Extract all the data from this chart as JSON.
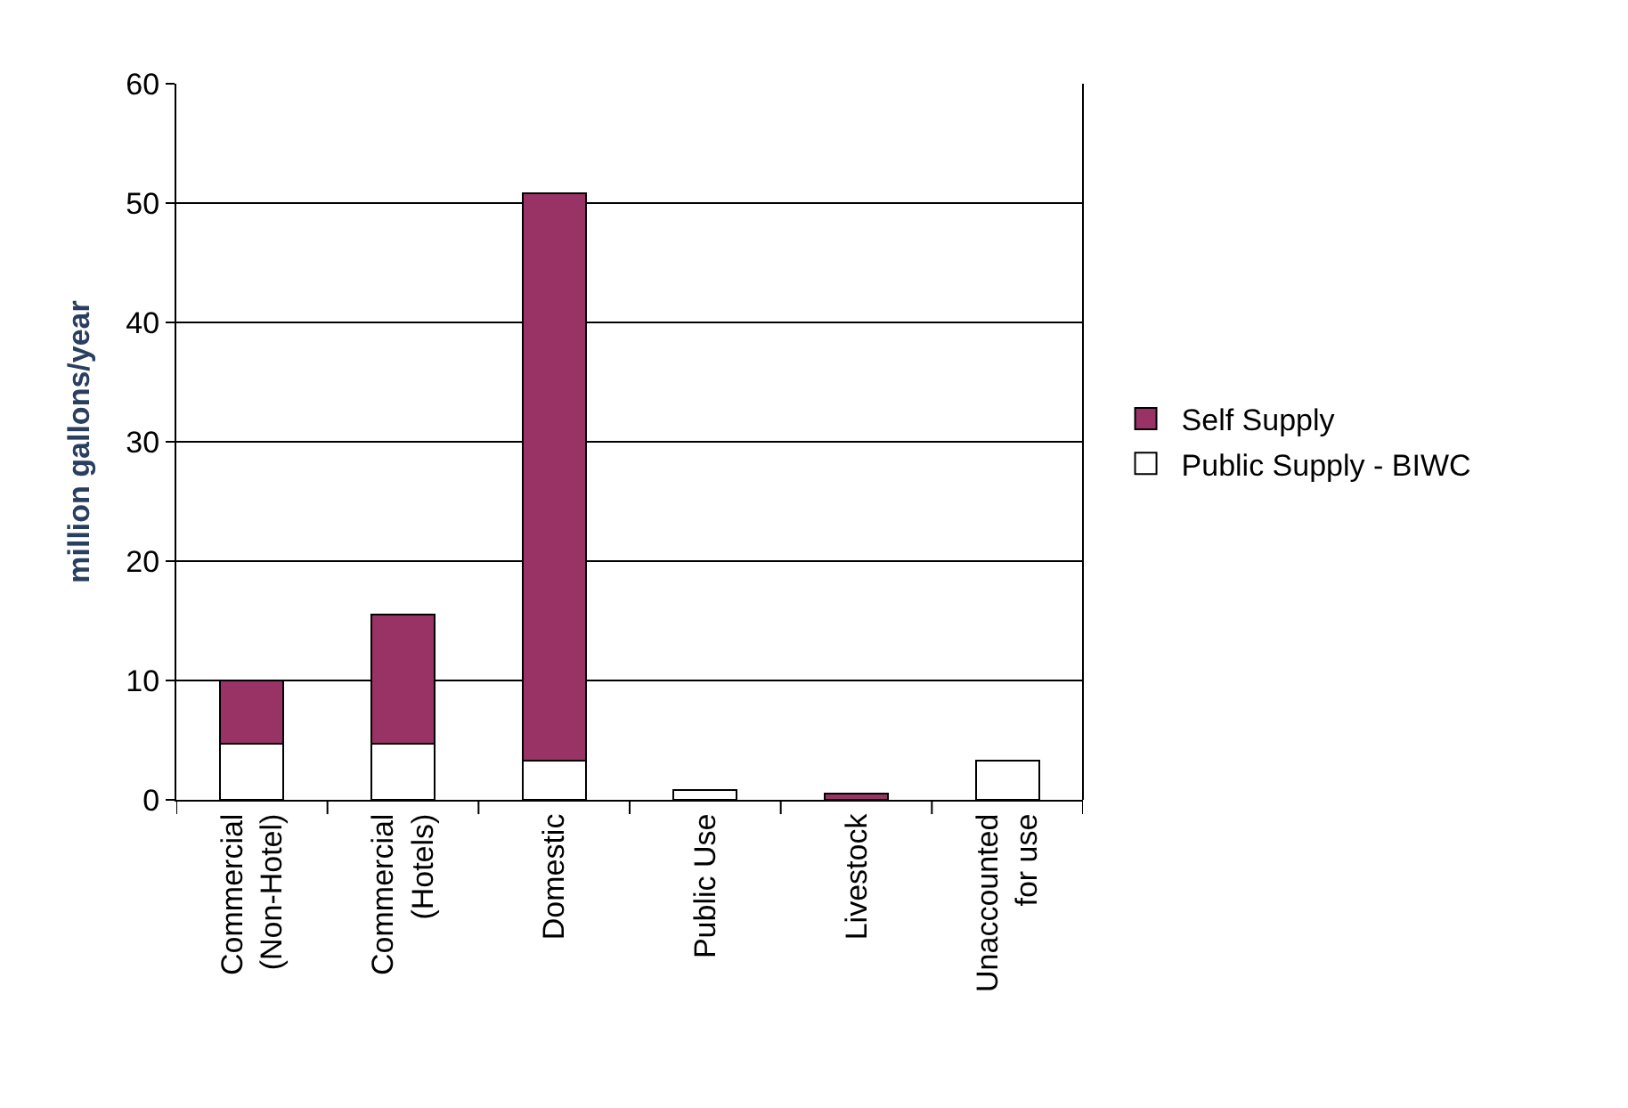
{
  "chart_data": {
    "type": "bar",
    "stacked": true,
    "ylabel": "million gallons/year",
    "categories": [
      "Commercial\n(Non-Hotel)",
      "Commercial\n(Hotels)",
      "Domestic",
      "Public Use",
      "Livestock",
      "Unaccounted\nfor use"
    ],
    "series": [
      {
        "name": "Public Supply - BIWC",
        "color": "#ffffff",
        "values": [
          4.7,
          4.7,
          3.3,
          0.8,
          null,
          3.3
        ]
      },
      {
        "name": "Self Supply",
        "color": "#993366",
        "values": [
          5.3,
          10.8,
          47.5,
          null,
          0.5,
          null
        ]
      }
    ],
    "ylim": [
      0,
      60
    ],
    "yticks": [
      0,
      10,
      20,
      30,
      40,
      50,
      60
    ],
    "grid": "y",
    "legend": "right"
  }
}
